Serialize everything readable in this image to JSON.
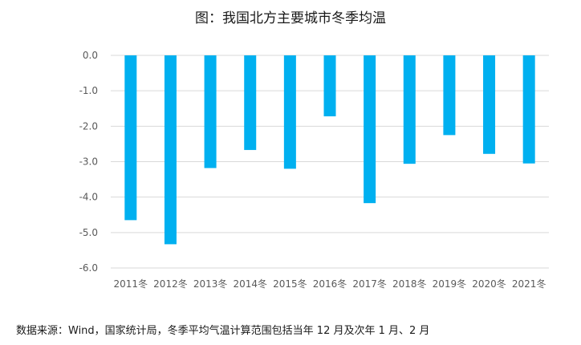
{
  "title": "图：我国北方主要城市冬季均温",
  "source": "数据来源：Wind，国家统计局，冬季平均气温计算范围包括当年 12 月及次年 1 月、2 月",
  "colors": {
    "bar": "#00b0f0",
    "grid": "#d9d9d9",
    "axis_text": "#595959"
  },
  "chart_data": {
    "type": "bar",
    "title": "图：我国北方主要城市冬季均温",
    "xlabel": "",
    "ylabel": "",
    "categories": [
      "2011冬",
      "2012冬",
      "2013冬",
      "2014冬",
      "2015冬",
      "2016冬",
      "2017冬",
      "2018冬",
      "2019冬",
      "2020冬",
      "2021冬"
    ],
    "values": [
      -4.65,
      -5.33,
      -3.18,
      -2.67,
      -3.2,
      -1.72,
      -4.17,
      -3.06,
      -2.25,
      -2.78,
      -3.05
    ],
    "ylim": [
      -6,
      0
    ],
    "yticks": [
      "0.0",
      "-1.0",
      "-2.0",
      "-3.0",
      "-4.0",
      "-5.0",
      "-6.0"
    ],
    "grid": true,
    "legend": "none"
  }
}
